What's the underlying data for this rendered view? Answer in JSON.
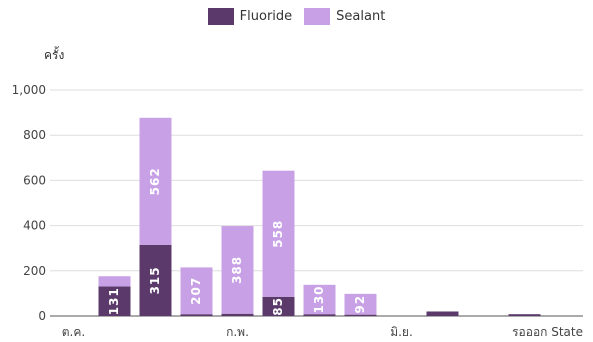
{
  "chart_data": {
    "type": "bar",
    "stacked": true,
    "ylabel": "ครั้ง",
    "ylim": [
      0,
      1000
    ],
    "yticks": [
      0,
      200,
      400,
      600,
      800,
      1000
    ],
    "ytick_labels": [
      "0",
      "200",
      "400",
      "600",
      "800",
      "1,000"
    ],
    "grid": true,
    "legend_position": "top-center",
    "categories": [
      "ต.ค.",
      "",
      "",
      "",
      "ก.พ.",
      "",
      "",
      "",
      "มิ.ย.",
      "",
      "",
      "",
      "รอออก State"
    ],
    "xtick_labels": [
      "ต.ค.",
      "ก.พ.",
      "มิ.ย.",
      "รอออก State"
    ],
    "series": [
      {
        "name": "Fluoride",
        "color": "#5b3a6b",
        "values": [
          0,
          131,
          315,
          8,
          10,
          85,
          8,
          6,
          0,
          20,
          0,
          8,
          0
        ],
        "labels": [
          "",
          "131",
          "315",
          "",
          "",
          "85",
          "",
          "",
          "",
          "",
          "",
          "",
          ""
        ]
      },
      {
        "name": "Sealant",
        "color": "#c7a0e6",
        "values": [
          0,
          45,
          562,
          207,
          388,
          558,
          130,
          92,
          0,
          0,
          0,
          0,
          0
        ],
        "labels": [
          "",
          "",
          "562",
          "207",
          "388",
          "558",
          "130",
          "92",
          "",
          "",
          "",
          "",
          ""
        ]
      }
    ]
  }
}
